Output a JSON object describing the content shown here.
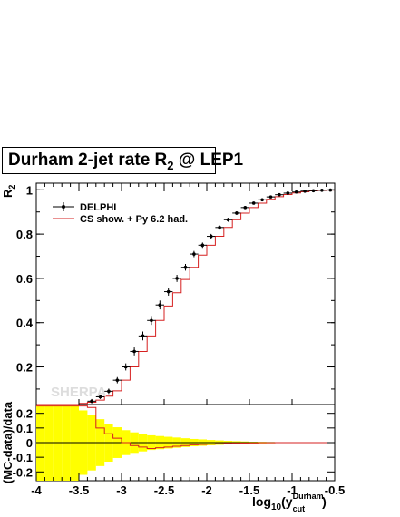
{
  "title": {
    "main": "Durham 2-jet rate R",
    "sub": "2",
    "suffix": " @ LEP1"
  },
  "watermark": "SHERPA",
  "colors": {
    "mc": "#d62020",
    "data": "#000000",
    "band": "#ffff00",
    "watermark": "#dddddd"
  },
  "chart_data": [
    {
      "type": "line",
      "panel": "main",
      "ylabel": "R",
      "ylabel_sub": "2",
      "xlim": [
        -4,
        -0.5
      ],
      "ylim": [
        0.03,
        1.03
      ],
      "yticks": [
        0.2,
        0.4,
        0.6,
        0.8,
        1
      ],
      "ytick_labels": [
        "0.2",
        "0.4",
        "0.6",
        "0.8",
        "1"
      ],
      "legend": {
        "placement": "top-left",
        "entries": [
          "DELPHI",
          "CS show. + Py 6.2 had."
        ]
      },
      "bin_edges": [
        -4.0,
        -3.9,
        -3.8,
        -3.7,
        -3.6,
        -3.5,
        -3.4,
        -3.3,
        -3.2,
        -3.1,
        -3.0,
        -2.9,
        -2.8,
        -2.7,
        -2.6,
        -2.5,
        -2.4,
        -2.3,
        -2.2,
        -2.1,
        -2.0,
        -1.9,
        -1.8,
        -1.7,
        -1.6,
        -1.5,
        -1.4,
        -1.3,
        -1.2,
        -1.1,
        -1.0,
        -0.9,
        -0.8,
        -0.7,
        -0.6,
        -0.5
      ],
      "series": [
        {
          "name": "DELPHI",
          "x": [
            -3.35,
            -3.25,
            -3.15,
            -3.05,
            -2.95,
            -2.85,
            -2.75,
            -2.65,
            -2.55,
            -2.45,
            -2.35,
            -2.25,
            -2.15,
            -2.05,
            -1.95,
            -1.85,
            -1.75,
            -1.65,
            -1.55,
            -1.45,
            -1.35,
            -1.25,
            -1.15,
            -1.05,
            -0.95,
            -0.85,
            -0.75,
            -0.65,
            -0.55
          ],
          "y": [
            0.045,
            0.065,
            0.09,
            0.14,
            0.2,
            0.27,
            0.34,
            0.41,
            0.48,
            0.54,
            0.6,
            0.65,
            0.71,
            0.75,
            0.79,
            0.83,
            0.865,
            0.895,
            0.92,
            0.94,
            0.955,
            0.968,
            0.978,
            0.985,
            0.99,
            0.994,
            0.996,
            0.998,
            0.999
          ],
          "yerr": [
            0.01,
            0.01,
            0.012,
            0.014,
            0.016,
            0.018,
            0.02,
            0.02,
            0.02,
            0.018,
            0.016,
            0.015,
            0.014,
            0.012,
            0.011,
            0.01,
            0.009,
            0.008,
            0.007,
            0.006,
            0.005,
            0.004,
            0.003,
            0.003,
            0.002,
            0.002,
            0.001,
            0.001,
            0.001
          ]
        },
        {
          "name": "CS show. + Py 6.2 had.",
          "values": [
            0.03,
            0.03,
            0.03,
            0.03,
            0.03,
            0.035,
            0.04,
            0.05,
            0.068,
            0.092,
            0.14,
            0.2,
            0.27,
            0.34,
            0.41,
            0.475,
            0.535,
            0.595,
            0.65,
            0.705,
            0.75,
            0.79,
            0.83,
            0.865,
            0.895,
            0.92,
            0.94,
            0.957,
            0.969,
            0.979,
            0.986,
            0.991,
            0.995,
            0.997,
            0.999
          ]
        }
      ]
    },
    {
      "type": "line",
      "panel": "ratio",
      "xlabel": "log",
      "xlabel_sub": "10",
      "xlabel_arg": "y",
      "xlabel_arg_sup": "Durham",
      "xlabel_arg_sub": "cut",
      "ylabel": "(MC-data)/data",
      "xlim": [
        -4,
        -0.5
      ],
      "ylim": [
        -0.26,
        0.26
      ],
      "yticks": [
        -0.2,
        -0.1,
        0,
        0.1,
        0.2
      ],
      "ytick_labels": [
        "-0.2",
        "-0.1",
        "0",
        "0.1",
        "0.2"
      ],
      "xticks": [
        -4,
        -3.5,
        -3,
        -2.5,
        -2,
        -1.5,
        -1,
        -0.5
      ],
      "xtick_labels": [
        "-4",
        "-3.5",
        "-3",
        "-2.5",
        "-2",
        "-1.5",
        "-1",
        "-0.5"
      ],
      "uncertainty_band": [
        0.3,
        0.3,
        0.3,
        0.3,
        0.26,
        0.22,
        0.19,
        0.16,
        0.13,
        0.105,
        0.085,
        0.07,
        0.06,
        0.05,
        0.045,
        0.04,
        0.035,
        0.03,
        0.025,
        0.022,
        0.018,
        0.015,
        0.012,
        0.01,
        0.008,
        0.006,
        0.005,
        0.004,
        0.003,
        0.003,
        0.002,
        0.002,
        0.001,
        0.001,
        0.001
      ],
      "ratio_values": [
        0.25,
        0.25,
        0.25,
        0.25,
        0.25,
        0.25,
        0.24,
        0.1,
        0.06,
        0.03,
        0.0,
        -0.02,
        -0.03,
        -0.04,
        -0.035,
        -0.03,
        -0.025,
        -0.02,
        -0.015,
        -0.012,
        -0.01,
        -0.008,
        -0.005,
        -0.004,
        -0.003,
        -0.002,
        -0.001,
        -0.001,
        0.0,
        0.0,
        0.0,
        0.0,
        0.0,
        0.0,
        0.0
      ]
    }
  ]
}
